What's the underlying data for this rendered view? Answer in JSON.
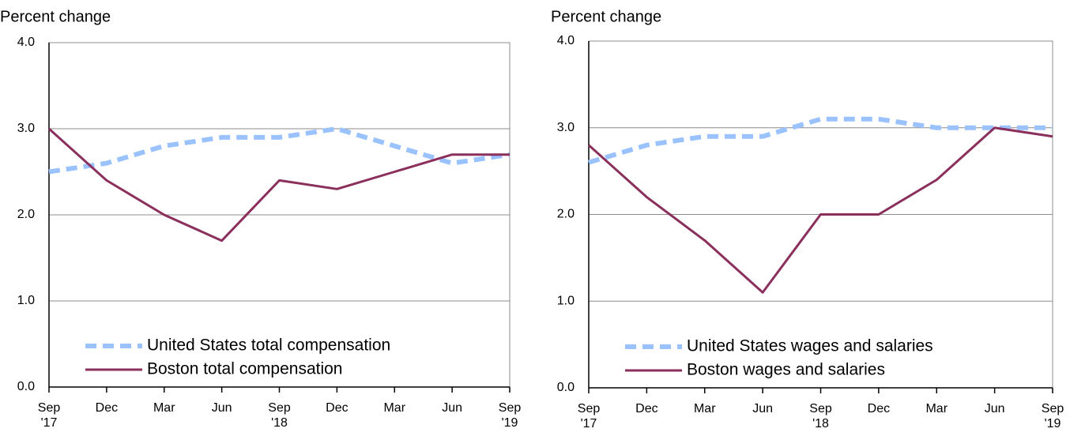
{
  "chart_data": [
    {
      "type": "line",
      "y_label": "Percent change",
      "categories": [
        "Sep\n'17",
        "Dec",
        "Mar",
        "Jun",
        "Sep\n'18",
        "Dec",
        "Mar",
        "Jun",
        "Sep\n'19"
      ],
      "series": [
        {
          "name": "United States total compensation",
          "color": "#99c2ff",
          "dashed": true,
          "values": [
            2.5,
            2.6,
            2.8,
            2.9,
            2.9,
            3.0,
            2.8,
            2.6,
            2.7
          ]
        },
        {
          "name": "Boston total compensation",
          "color": "#8b2f5c",
          "dashed": false,
          "values": [
            3.0,
            2.4,
            2.0,
            1.7,
            2.4,
            2.3,
            2.5,
            2.7,
            2.7
          ]
        }
      ],
      "ylim": [
        0,
        4
      ],
      "yticks": [
        {
          "value": 0,
          "label": "0.0"
        },
        {
          "value": 1,
          "label": "1.0"
        },
        {
          "value": 2,
          "label": "2.0"
        },
        {
          "value": 3,
          "label": "3.0"
        },
        {
          "value": 4,
          "label": "4.0"
        }
      ],
      "grid": true,
      "legend": "lower left"
    },
    {
      "type": "line",
      "y_label": "Percent change",
      "categories": [
        "Sep\n'17",
        "Dec",
        "Mar",
        "Jun",
        "Sep\n'18",
        "Dec",
        "Mar",
        "Jun",
        "Sep\n'19"
      ],
      "series": [
        {
          "name": "United States wages and salaries",
          "color": "#99c2ff",
          "dashed": true,
          "values": [
            2.6,
            2.8,
            2.9,
            2.9,
            3.1,
            3.1,
            3.0,
            3.0,
            3.0
          ]
        },
        {
          "name": "Boston wages and salaries",
          "color": "#8b2f5c",
          "dashed": false,
          "values": [
            2.8,
            2.2,
            1.7,
            1.1,
            2.0,
            2.0,
            2.4,
            3.0,
            2.9
          ]
        }
      ],
      "ylim": [
        0,
        4
      ],
      "yticks": [
        {
          "value": 0,
          "label": "0.0"
        },
        {
          "value": 1,
          "label": "1.0"
        },
        {
          "value": 2,
          "label": "2.0"
        },
        {
          "value": 3,
          "label": "3.0"
        },
        {
          "value": 4,
          "label": "4.0"
        }
      ],
      "grid": true,
      "legend": "lower left"
    }
  ]
}
